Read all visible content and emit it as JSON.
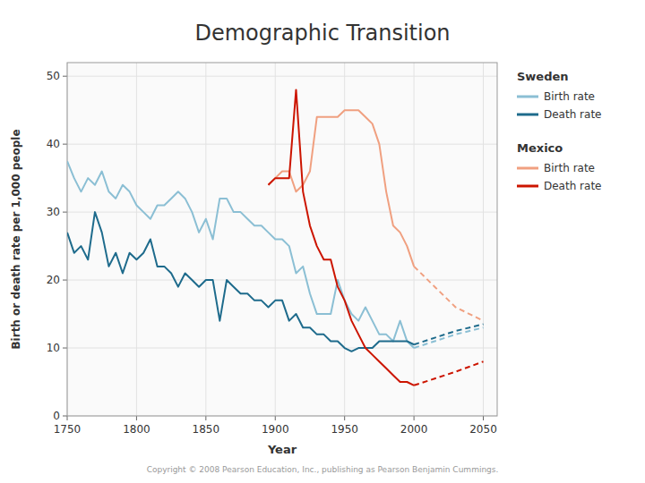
{
  "chart_data": {
    "type": "line",
    "title": "Demographic Transition",
    "x_label": "Year",
    "y_label": "Birth or death rate per 1,000 people",
    "xlim": [
      1750,
      2060
    ],
    "ylim": [
      0,
      52
    ],
    "xticks": [
      1750,
      1800,
      1850,
      1900,
      1950,
      2000,
      2050
    ],
    "yticks": [
      0,
      10,
      20,
      30,
      40,
      50
    ],
    "grid": true,
    "legend": "right",
    "annotations": [
      "Copyright © 2008 Pearson Education, Inc., publishing as Pearson Benjamin Cummings."
    ],
    "series": [
      {
        "name": "Birth rate",
        "group": "Sweden",
        "color": "#8bbfd4",
        "line_style": "solid",
        "x": [
          1750,
          1755,
          1760,
          1765,
          1770,
          1775,
          1780,
          1785,
          1790,
          1795,
          1800,
          1805,
          1810,
          1815,
          1820,
          1825,
          1830,
          1835,
          1840,
          1845,
          1850,
          1855,
          1860,
          1865,
          1870,
          1875,
          1880,
          1885,
          1890,
          1895,
          1900,
          1905,
          1910,
          1915,
          1920,
          1925,
          1930,
          1935,
          1940,
          1945,
          1950,
          1955,
          1960,
          1965,
          1970,
          1975,
          1980,
          1985,
          1990,
          1995,
          2000
        ],
        "values": [
          37.5,
          35,
          33,
          35,
          34,
          36,
          33,
          32,
          34,
          33,
          31,
          30,
          29,
          31,
          31,
          32,
          33,
          32,
          30,
          27,
          29,
          26,
          32,
          32,
          30,
          30,
          29,
          28,
          28,
          27,
          26,
          26,
          25,
          21,
          22,
          18,
          15,
          15,
          15,
          20,
          17,
          15,
          14,
          16,
          14,
          12,
          12,
          11,
          14,
          11,
          10
        ]
      },
      {
        "name": "Death rate",
        "group": "Sweden",
        "color": "#1e6b8c",
        "line_style": "solid",
        "x": [
          1750,
          1755,
          1760,
          1765,
          1770,
          1775,
          1780,
          1785,
          1790,
          1795,
          1800,
          1805,
          1810,
          1815,
          1820,
          1825,
          1830,
          1835,
          1840,
          1845,
          1850,
          1855,
          1860,
          1865,
          1870,
          1875,
          1880,
          1885,
          1890,
          1895,
          1900,
          1905,
          1910,
          1915,
          1920,
          1925,
          1930,
          1935,
          1940,
          1945,
          1950,
          1955,
          1960,
          1965,
          1970,
          1975,
          1980,
          1985,
          1990,
          1995,
          2000
        ],
        "values": [
          27,
          24,
          25,
          23,
          30,
          27,
          22,
          24,
          21,
          24,
          23,
          24,
          26,
          22,
          22,
          21,
          19,
          21,
          20,
          19,
          20,
          20,
          14,
          20,
          19,
          18,
          18,
          17,
          17,
          16,
          17,
          17,
          14,
          15,
          13,
          13,
          12,
          12,
          11,
          11,
          10,
          9.5,
          10,
          10,
          10,
          11,
          11,
          11,
          11,
          11,
          10.5
        ]
      },
      {
        "name": "Birth rate",
        "group": "Mexico",
        "color": "#f0a080",
        "line_style": "solid",
        "x": [
          1895,
          1900,
          1905,
          1910,
          1915,
          1920,
          1925,
          1930,
          1935,
          1940,
          1945,
          1950,
          1955,
          1960,
          1965,
          1970,
          1975,
          1980,
          1985,
          1990,
          1995,
          2000
        ],
        "values": [
          34,
          35,
          36,
          36,
          33,
          34,
          36,
          44,
          44,
          44,
          44,
          45,
          45,
          45,
          44,
          43,
          40,
          33,
          28,
          27,
          25,
          22
        ]
      },
      {
        "name": "Death rate",
        "group": "Mexico",
        "color": "#cc1500",
        "line_style": "solid",
        "x": [
          1895,
          1900,
          1905,
          1910,
          1915,
          1920,
          1925,
          1930,
          1935,
          1940,
          1945,
          1950,
          1955,
          1960,
          1965,
          1970,
          1975,
          1980,
          1985,
          1990,
          1995,
          2000
        ],
        "values": [
          34,
          35,
          35,
          35,
          48,
          33,
          28,
          25,
          23,
          23,
          19,
          17,
          14,
          12,
          10,
          9,
          8,
          7,
          6,
          5,
          5,
          4.5
        ]
      },
      {
        "color": "#8bbfd4",
        "line_style": "dashed",
        "x": [
          2000,
          2015,
          2030,
          2050
        ],
        "values": [
          10,
          11,
          12,
          13
        ]
      },
      {
        "color": "#1e6b8c",
        "line_style": "dashed",
        "x": [
          2000,
          2015,
          2030,
          2050
        ],
        "values": [
          10.5,
          11.5,
          12.5,
          13.5
        ]
      },
      {
        "color": "#f0a080",
        "line_style": "dashed",
        "x": [
          2000,
          2015,
          2030,
          2050
        ],
        "values": [
          22,
          19,
          16,
          14
        ]
      },
      {
        "color": "#cc1500",
        "line_style": "dashed",
        "x": [
          2000,
          2015,
          2030,
          2050
        ],
        "values": [
          4.5,
          5.5,
          6.5,
          8
        ]
      }
    ]
  }
}
